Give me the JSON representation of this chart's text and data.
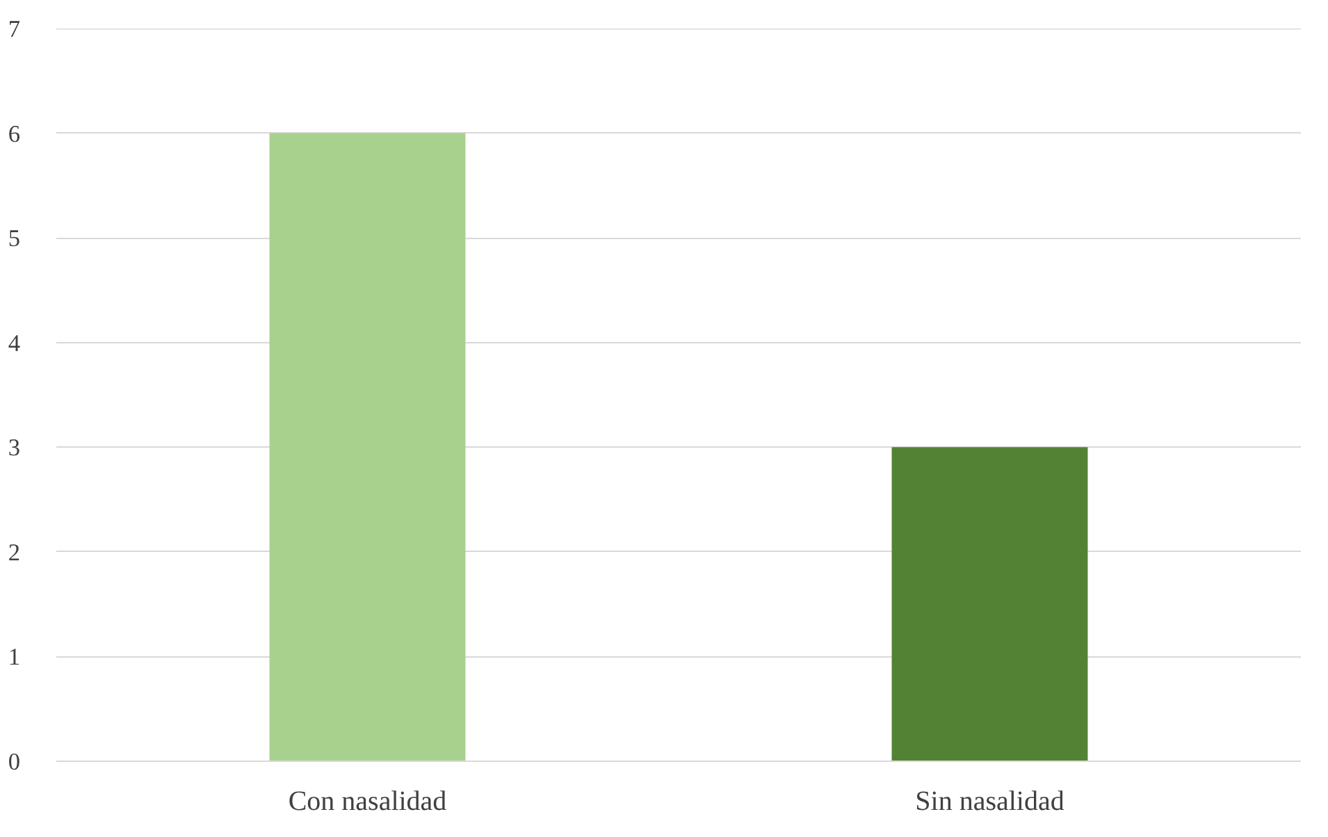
{
  "chart_data": {
    "type": "bar",
    "categories": [
      "Con nasalidad",
      "Sin nasalidad"
    ],
    "values": [
      6,
      3
    ],
    "colors": [
      "#a9d18e",
      "#548235"
    ],
    "ylim": [
      0,
      7
    ],
    "yticks": [
      0,
      1,
      2,
      3,
      4,
      5,
      6,
      7
    ],
    "grid": "y"
  }
}
